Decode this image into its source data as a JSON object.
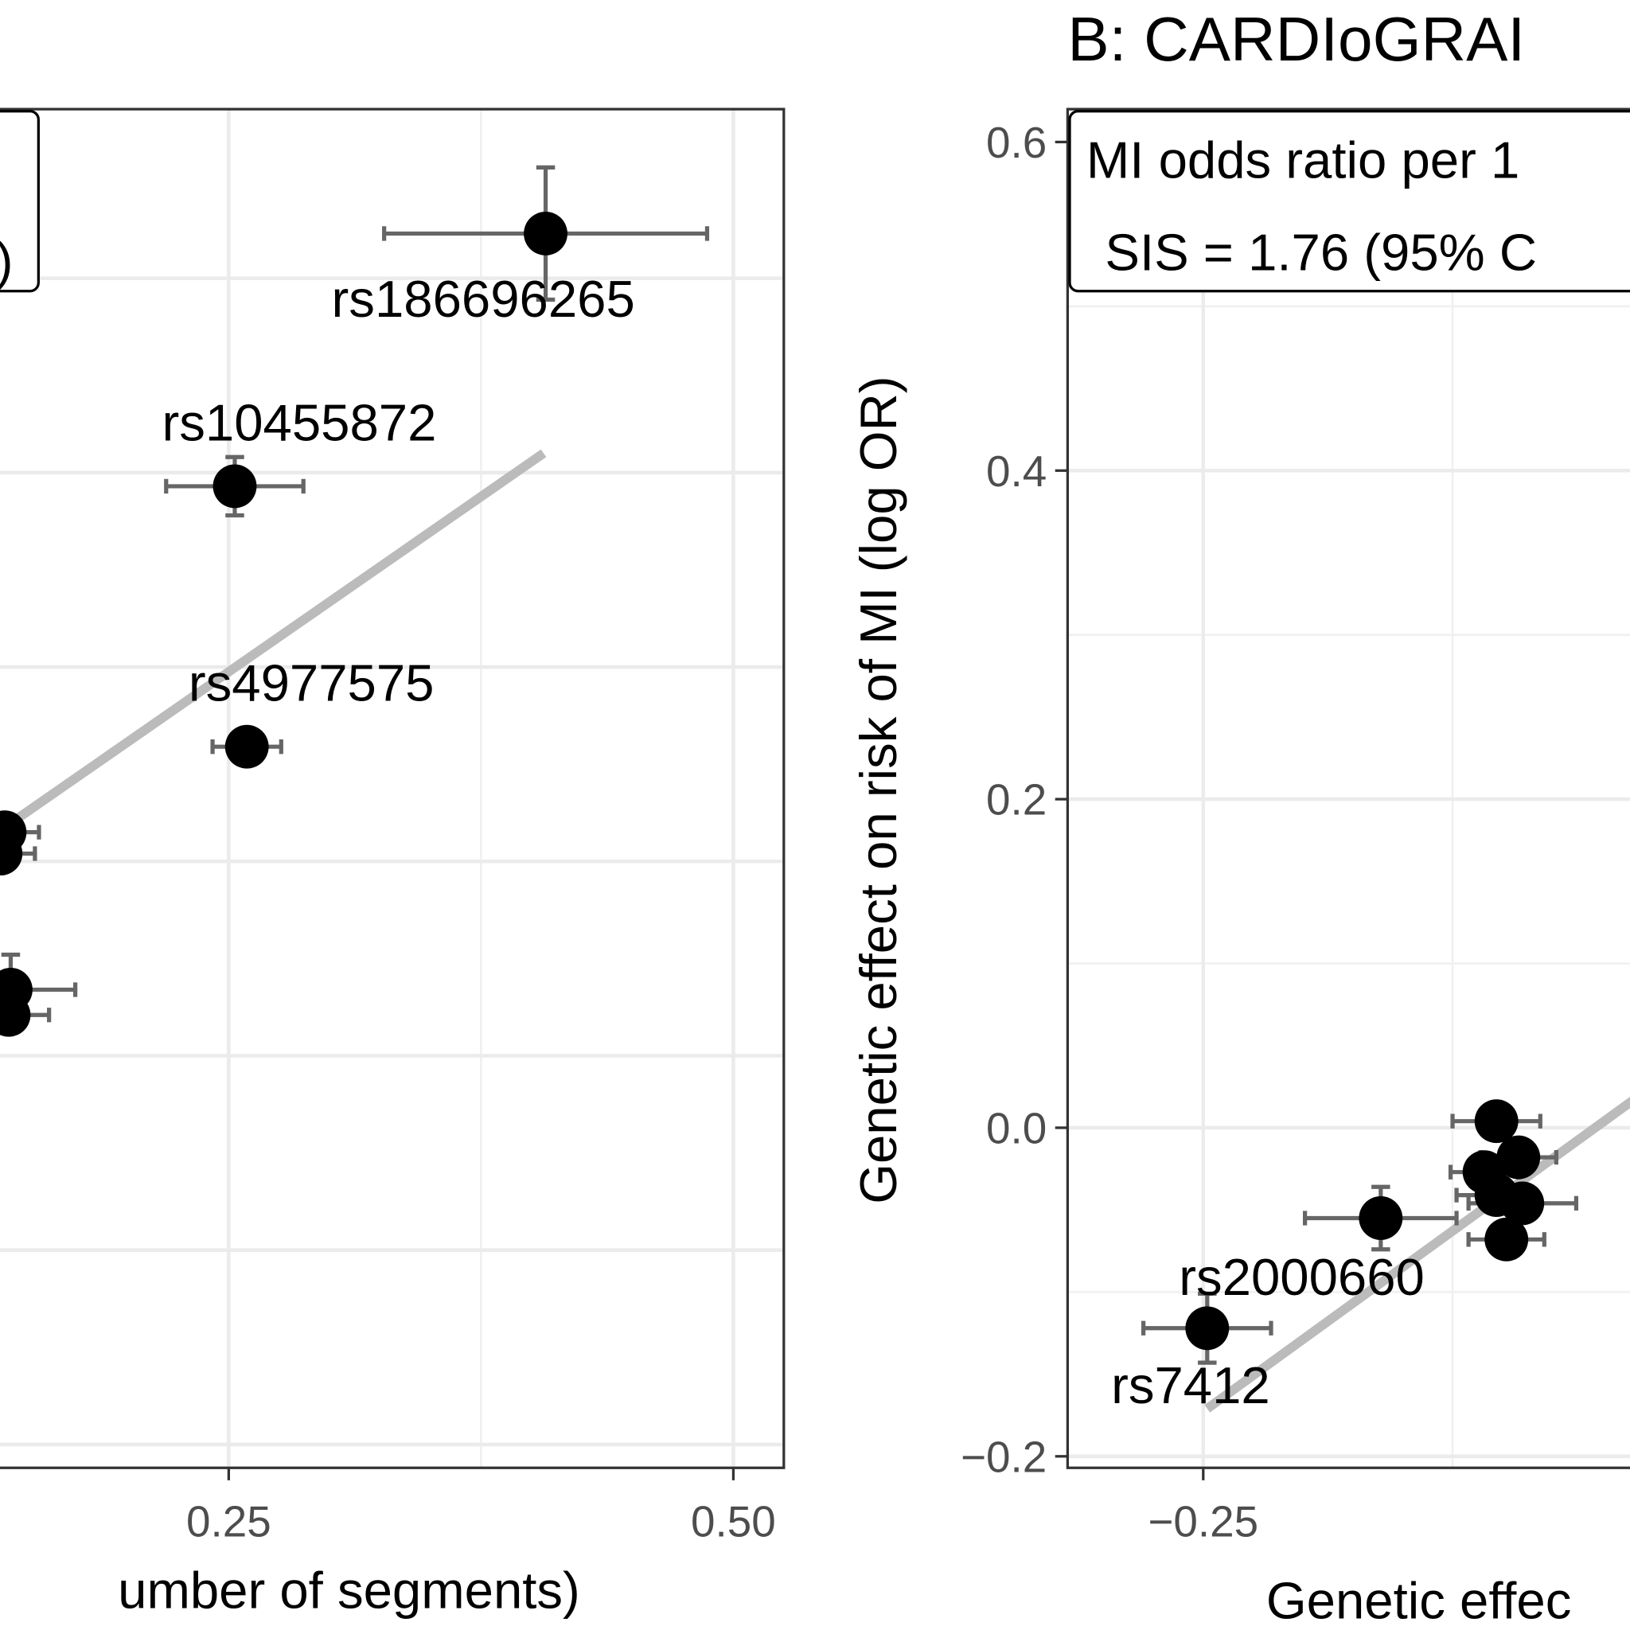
{
  "chart_data": [
    {
      "type": "scatter",
      "xlabel": "umber of segments)",
      "legend_text": ")",
      "xlim": [
        0.13,
        0.525
      ],
      "ylim": [
        -0.012,
        0.687
      ],
      "xticks": [
        0.25,
        {
          "value": 0.5,
          "label": "0.50"
        }
      ],
      "xminor": [
        0.375
      ],
      "ygrid": [
        0,
        0.1,
        0.2,
        0.3,
        0.4,
        0.5,
        0.6
      ],
      "grid": true,
      "color": "#000000",
      "errcolor": "#666666",
      "fitcolor": "#bbbbbb",
      "points": {
        "x": [
          0.407,
          0.253,
          0.259,
          0.139,
          0.137,
          0.142,
          0.141
        ],
        "y": [
          0.623,
          0.493,
          0.359,
          0.315,
          0.304,
          0.234,
          0.221
        ],
        "xerr": [
          0.08,
          0.034,
          0.017,
          0.017,
          0.017,
          0.032,
          0.02
        ],
        "yerr": [
          0.034,
          0.015,
          0.005,
          0.005,
          0.005,
          0.018,
          0.005
        ],
        "labels": [
          "rs186696265",
          "rs10455872",
          "rs4977575",
          null,
          null,
          null,
          null
        ]
      },
      "fit": {
        "x": [
          0.13,
          0.406
        ],
        "y": [
          0.311,
          0.51
        ]
      }
    },
    {
      "type": "scatter",
      "title": "B: CARDIoGRAI",
      "xlabel": "Genetic effec",
      "ylabel": "Genetic effect on risk of MI (log OR)",
      "annotation": [
        "MI odds ratio per 1",
        "SIS = 1.76 (95% C"
      ],
      "xlim": [
        -0.318,
        0.1
      ],
      "ylim": [
        -0.207,
        0.62
      ],
      "xticks": [
        {
          "value": -0.25,
          "label": "−0.25"
        }
      ],
      "xminor": [
        -0.125
      ],
      "yticks": [
        0.6,
        0.4,
        0.2,
        {
          "value": 0,
          "label": "0.0"
        },
        {
          "value": -0.2,
          "label": "−0.2"
        }
      ],
      "yminor": [
        0.5,
        0.3,
        0.1,
        -0.1
      ],
      "grid": true,
      "color": "#000000",
      "errcolor": "#666666",
      "fitcolor": "#bbbbbb",
      "points": {
        "x": [
          -0.103,
          -0.092,
          -0.109,
          -0.103,
          -0.09,
          -0.098,
          -0.161,
          -0.248
        ],
        "y": [
          0.004,
          -0.018,
          -0.027,
          -0.041,
          -0.046,
          -0.068,
          -0.055,
          -0.122
        ],
        "xerr": [
          0.022,
          0.019,
          0.017,
          0.02,
          0.027,
          0.019,
          0.038,
          0.032
        ],
        "yerr": [
          0.005,
          0.005,
          0.005,
          0.005,
          0.005,
          0.005,
          0.019,
          0.021
        ],
        "labels": [
          null,
          null,
          null,
          null,
          null,
          null,
          "rs2000660",
          "rs7412"
        ]
      },
      "fit": {
        "x": [
          -0.248,
          0.1
        ],
        "y": [
          -0.171,
          0.135
        ]
      }
    }
  ]
}
